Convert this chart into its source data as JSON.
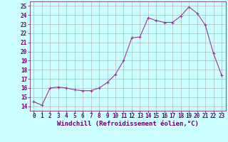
{
  "x": [
    0,
    1,
    2,
    3,
    4,
    5,
    6,
    7,
    8,
    9,
    10,
    11,
    12,
    13,
    14,
    15,
    16,
    17,
    18,
    19,
    20,
    21,
    22,
    23
  ],
  "y": [
    14.5,
    14.1,
    16.0,
    16.1,
    16.0,
    15.8,
    15.7,
    15.7,
    16.0,
    16.6,
    17.5,
    19.0,
    21.5,
    21.6,
    23.7,
    23.4,
    23.2,
    23.2,
    23.9,
    24.9,
    24.2,
    22.9,
    19.8,
    17.4
  ],
  "line_color": "#993399",
  "marker_color": "#993399",
  "bg_color": "#ccffff",
  "grid_color": "#aaaaaa",
  "xlabel": "Windchill (Refroidissement éolien,°C)",
  "xlim": [
    -0.5,
    23.5
  ],
  "ylim": [
    13.5,
    25.5
  ],
  "yticks": [
    14,
    15,
    16,
    17,
    18,
    19,
    20,
    21,
    22,
    23,
    24,
    25
  ],
  "xticks": [
    0,
    1,
    2,
    3,
    4,
    5,
    6,
    7,
    8,
    9,
    10,
    11,
    12,
    13,
    14,
    15,
    16,
    17,
    18,
    19,
    20,
    21,
    22,
    23
  ],
  "title_color": "#660066",
  "axis_color": "#660066",
  "label_fontsize": 6.5,
  "tick_fontsize": 5.5
}
